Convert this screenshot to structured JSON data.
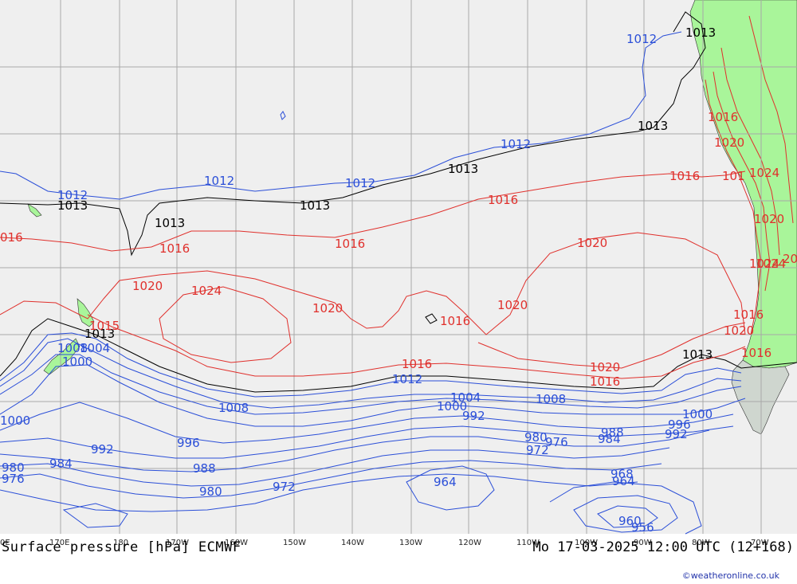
{
  "title_left": "Surface pressure [hPa] ECMWF",
  "title_right": "Mo 17-03-2025 12:00 UTC (12+168)",
  "credit": "©weatheronline.co.uk",
  "colors": {
    "ocean": "#efefef",
    "land": "#a9f59a",
    "grid": "#a8a8a8",
    "high_isobar": "#e0302c",
    "low_isobar": "#2b4fd8",
    "mid_isobar": "#000000"
  },
  "lon_ticks": [
    "0E",
    "170E",
    "180",
    "170W",
    "160W",
    "150W",
    "140W",
    "130W",
    "120W",
    "110W",
    "100W",
    "90W",
    "80W",
    "70W"
  ],
  "isobar_labels": {
    "black": [
      "1013",
      "1013",
      "1013",
      "1013",
      "1013",
      "1013",
      "1013"
    ],
    "blue": [
      "1012",
      "1012",
      "1012",
      "1012",
      "1012",
      "1012",
      "1008",
      "1008",
      "1004",
      "1000",
      "1000",
      "1000",
      "996",
      "992",
      "992",
      "992",
      "988",
      "984",
      "980",
      "980",
      "976",
      "972",
      "972",
      "968",
      "964",
      "964",
      "960",
      "956",
      "1008",
      "1004",
      "996",
      "988",
      "984",
      "980"
    ],
    "red": [
      "016",
      "1016",
      "1016",
      "1016",
      "1016",
      "1016",
      "1016",
      "1016",
      "1016",
      "1016",
      "1016",
      "101",
      "1020",
      "1020",
      "1020",
      "1020",
      "1020",
      "1020",
      "1020",
      "1024",
      "1024",
      "1024",
      "1020",
      "1024",
      "20",
      "1015"
    ]
  }
}
